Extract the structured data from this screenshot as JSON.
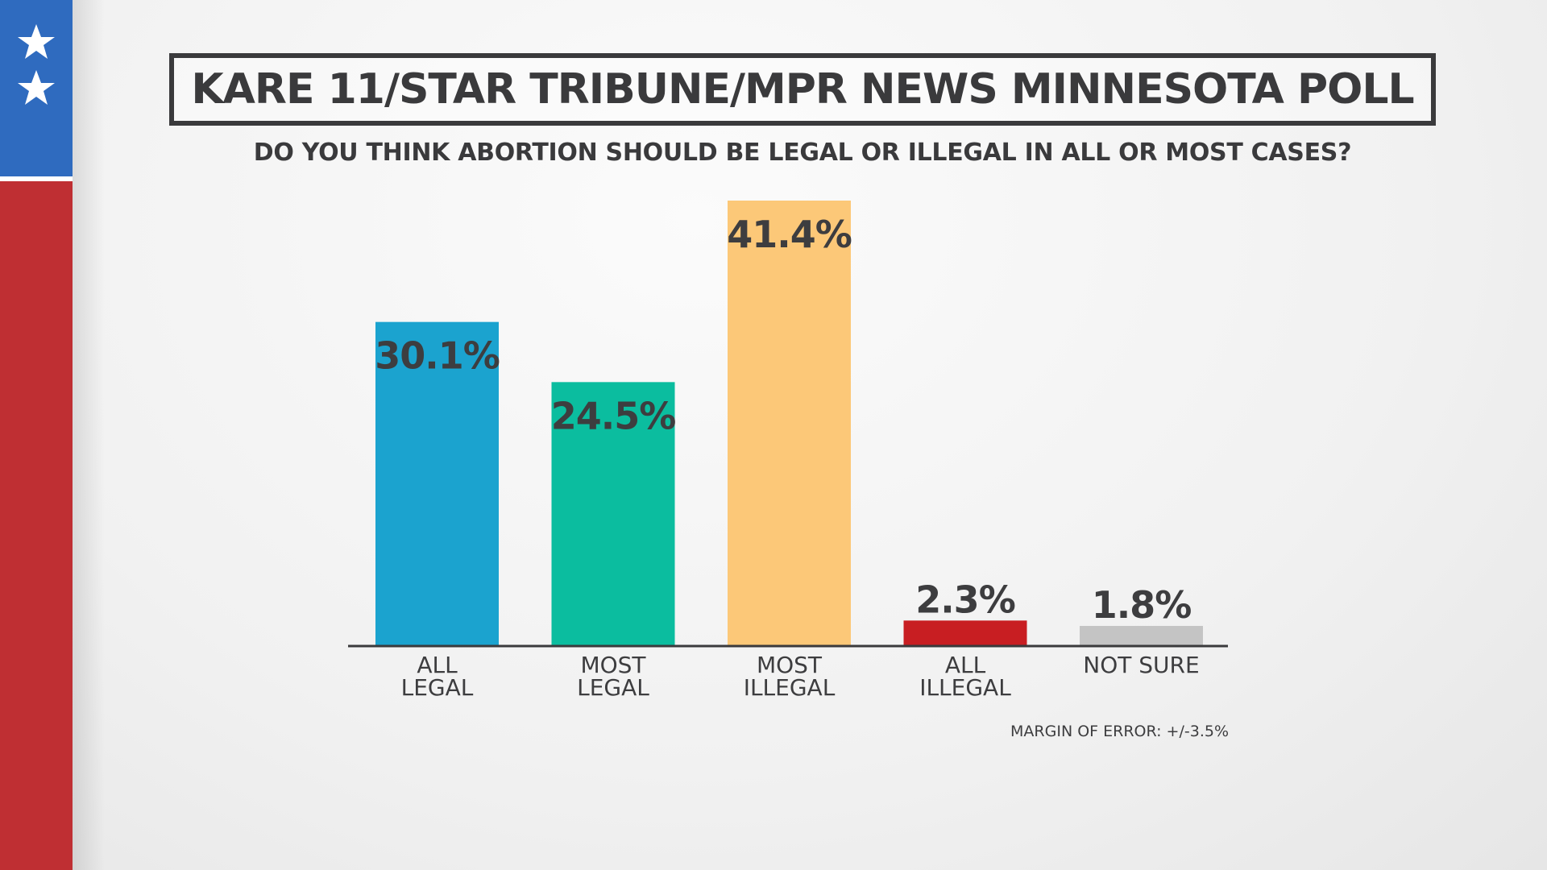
{
  "header": {
    "title": "KARE 11/STAR TRIBUNE/MPR NEWS MINNESOTA POLL",
    "subtitle": "DO YOU THINK ABORTION SHOULD BE LEGAL OR ILLEGAL IN ALL OR MOST CASES?"
  },
  "footer": {
    "margin_of_error": "MARGIN OF ERROR: +/-3.5%"
  },
  "decor": {
    "flag_blue": "#2f6bbf",
    "flag_red": "#bf2f33",
    "star_icon": "star-icon"
  },
  "chart_data": {
    "type": "bar",
    "categories": [
      [
        "ALL",
        "LEGAL"
      ],
      [
        "MOST",
        "LEGAL"
      ],
      [
        "MOST",
        "ILLEGAL"
      ],
      [
        "ALL",
        "ILLEGAL"
      ],
      [
        "NOT SURE"
      ]
    ],
    "values": [
      30.1,
      24.5,
      41.4,
      2.3,
      1.8
    ],
    "value_labels": [
      "30.1%",
      "24.5%",
      "41.4%",
      "2.3%",
      "1.8%"
    ],
    "colors": [
      "#1ba3cf",
      "#0bbd9f",
      "#fcc878",
      "#c81e22",
      "#c4c4c4"
    ],
    "ylim": [
      0,
      41.4
    ],
    "grid": false,
    "legend": "none"
  }
}
